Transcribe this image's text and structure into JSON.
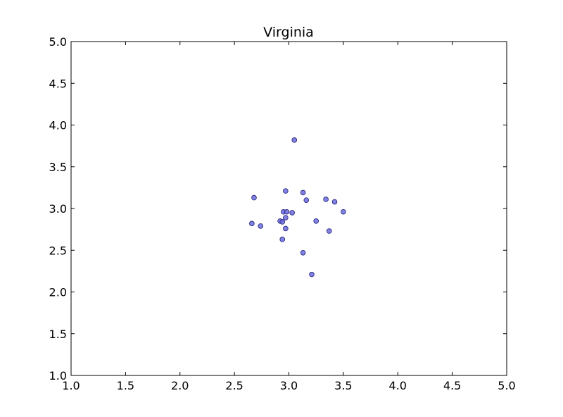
{
  "chart_data": {
    "type": "scatter",
    "title": "Virginia",
    "xlabel": "",
    "ylabel": "",
    "xlim": [
      1.0,
      5.0
    ],
    "ylim": [
      1.0,
      5.0
    ],
    "xticks": [
      "1.0",
      "1.5",
      "2.0",
      "2.5",
      "3.0",
      "3.5",
      "4.0",
      "4.5",
      "5.0"
    ],
    "yticks": [
      "1.0",
      "1.5",
      "2.0",
      "2.5",
      "3.0",
      "3.5",
      "4.0",
      "4.5",
      "5.0"
    ],
    "grid": false,
    "legend": false,
    "colors": {
      "marker_fill": "#6b6bdc",
      "marker_edge": "#1f1f7a",
      "axis": "#000000"
    },
    "points": [
      {
        "x": 3.05,
        "y": 3.82
      },
      {
        "x": 2.68,
        "y": 3.13
      },
      {
        "x": 2.97,
        "y": 3.21
      },
      {
        "x": 3.13,
        "y": 3.19
      },
      {
        "x": 3.34,
        "y": 3.11
      },
      {
        "x": 3.16,
        "y": 3.1
      },
      {
        "x": 3.42,
        "y": 3.08
      },
      {
        "x": 2.95,
        "y": 2.96
      },
      {
        "x": 2.98,
        "y": 2.96
      },
      {
        "x": 3.03,
        "y": 2.95
      },
      {
        "x": 3.5,
        "y": 2.96
      },
      {
        "x": 2.97,
        "y": 2.89
      },
      {
        "x": 2.92,
        "y": 2.85
      },
      {
        "x": 2.94,
        "y": 2.84
      },
      {
        "x": 3.25,
        "y": 2.85
      },
      {
        "x": 2.66,
        "y": 2.82
      },
      {
        "x": 2.74,
        "y": 2.79
      },
      {
        "x": 2.97,
        "y": 2.76
      },
      {
        "x": 3.37,
        "y": 2.73
      },
      {
        "x": 2.94,
        "y": 2.63
      },
      {
        "x": 3.13,
        "y": 2.47
      },
      {
        "x": 3.21,
        "y": 2.21
      }
    ]
  }
}
